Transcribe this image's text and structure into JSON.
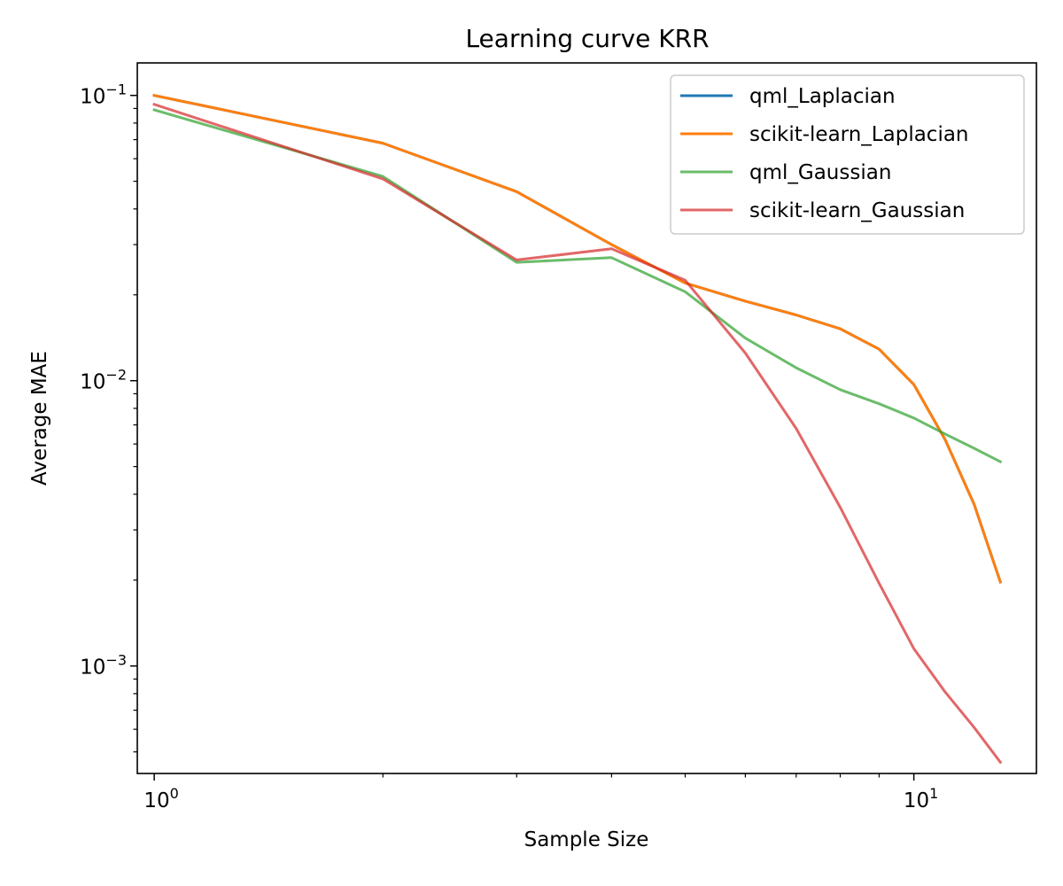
{
  "chart_data": {
    "type": "line",
    "title": "Learning curve KRR",
    "xlabel": "Sample Size",
    "ylabel": "Average MAE",
    "xscale": "log",
    "yscale": "log",
    "xlim": [
      0.95,
      14.5
    ],
    "ylim": [
      0.00042,
      0.13
    ],
    "x_major_ticks": [
      1,
      10
    ],
    "x_major_tick_labels": [
      {
        "base": "10",
        "exp": "0"
      },
      {
        "base": "10",
        "exp": "1"
      }
    ],
    "y_major_ticks": [
      0.001,
      0.01,
      0.1
    ],
    "y_major_tick_labels": [
      {
        "base": "10",
        "exp": "−3"
      },
      {
        "base": "10",
        "exp": "−2"
      },
      {
        "base": "10",
        "exp": "−1"
      }
    ],
    "legend_position": "top-right",
    "grid": false,
    "x": [
      1,
      2,
      3,
      4,
      5,
      6,
      7,
      8,
      9,
      10,
      11,
      12,
      13
    ],
    "series": [
      {
        "name": "qml_Laplacian",
        "color": "#1f77b4",
        "opacity": 1.0,
        "values": [
          0.1,
          0.068,
          0.046,
          0.03,
          0.022,
          0.019,
          0.017,
          0.0152,
          0.0129,
          0.0097,
          0.0062,
          0.0037,
          0.00197
        ]
      },
      {
        "name": "scikit-learn_Laplacian",
        "color": "#ff7f0e",
        "opacity": 1.0,
        "values": [
          0.1,
          0.068,
          0.046,
          0.03,
          0.022,
          0.019,
          0.017,
          0.0152,
          0.0129,
          0.0097,
          0.0062,
          0.0037,
          0.00197
        ]
      },
      {
        "name": "qml_Gaussian",
        "color": "#2ca02c",
        "opacity": 0.7,
        "values": [
          0.089,
          0.052,
          0.026,
          0.027,
          0.0205,
          0.0141,
          0.0111,
          0.0093,
          0.0083,
          0.0074,
          0.0065,
          0.0058,
          0.0052
        ]
      },
      {
        "name": "scikit-learn_Gaussian",
        "color": "#d62728",
        "opacity": 0.7,
        "values": [
          0.093,
          0.051,
          0.0265,
          0.029,
          0.0225,
          0.0125,
          0.0068,
          0.0036,
          0.00195,
          0.00115,
          0.00081,
          0.00061,
          0.00046
        ]
      }
    ]
  }
}
